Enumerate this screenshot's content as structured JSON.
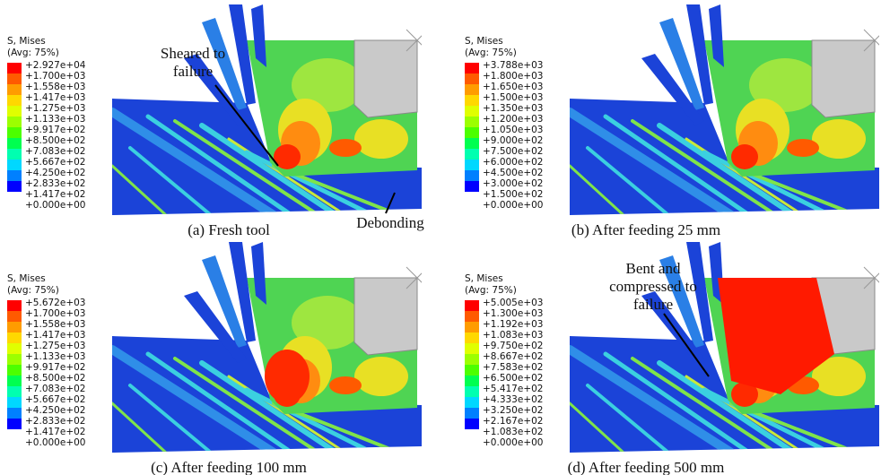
{
  "panels": [
    {
      "legend": {
        "title": "S, Mises",
        "subtitle": "(Avg: 75%)",
        "labels": [
          "+2.927e+04",
          "+1.700e+03",
          "+1.558e+03",
          "+1.417e+03",
          "+1.275e+03",
          "+1.133e+03",
          "+9.917e+02",
          "+8.500e+02",
          "+7.083e+02",
          "+5.667e+02",
          "+4.250e+02",
          "+2.833e+02",
          "+1.417e+02",
          "+0.000e+00"
        ]
      },
      "caption": "(a) Fresh tool",
      "annotations": [
        [
          "Sheared to",
          "failure"
        ],
        [
          "Debonding"
        ]
      ]
    },
    {
      "legend": {
        "title": "S, Mises",
        "subtitle": "(Avg: 75%)",
        "labels": [
          "+3.788e+03",
          "+1.800e+03",
          "+1.650e+03",
          "+1.500e+03",
          "+1.350e+03",
          "+1.200e+03",
          "+1.050e+03",
          "+9.000e+02",
          "+7.500e+02",
          "+6.000e+02",
          "+4.500e+02",
          "+3.000e+02",
          "+1.500e+02",
          "+0.000e+00"
        ]
      },
      "caption": "(b) After feeding 25 mm"
    },
    {
      "legend": {
        "title": "S, Mises",
        "subtitle": "(Avg: 75%)",
        "labels": [
          "+5.672e+03",
          "+1.700e+03",
          "+1.558e+03",
          "+1.417e+03",
          "+1.275e+03",
          "+1.133e+03",
          "+9.917e+02",
          "+8.500e+02",
          "+7.083e+02",
          "+5.667e+02",
          "+4.250e+02",
          "+2.833e+02",
          "+1.417e+02",
          "+0.000e+00"
        ]
      },
      "caption": "(c) After feeding 100 mm"
    },
    {
      "legend": {
        "title": "S, Mises",
        "subtitle": "(Avg: 75%)",
        "labels": [
          "+5.005e+03",
          "+1.300e+03",
          "+1.192e+03",
          "+1.083e+03",
          "+9.750e+02",
          "+8.667e+02",
          "+7.583e+02",
          "+6.500e+02",
          "+5.417e+02",
          "+4.333e+02",
          "+3.250e+02",
          "+2.167e+02",
          "+1.083e+02",
          "+0.000e+00"
        ]
      },
      "caption": "(d) After feeding 500 mm",
      "annotations": [
        [
          "Bent and",
          "compressed to",
          "failure"
        ]
      ]
    }
  ]
}
